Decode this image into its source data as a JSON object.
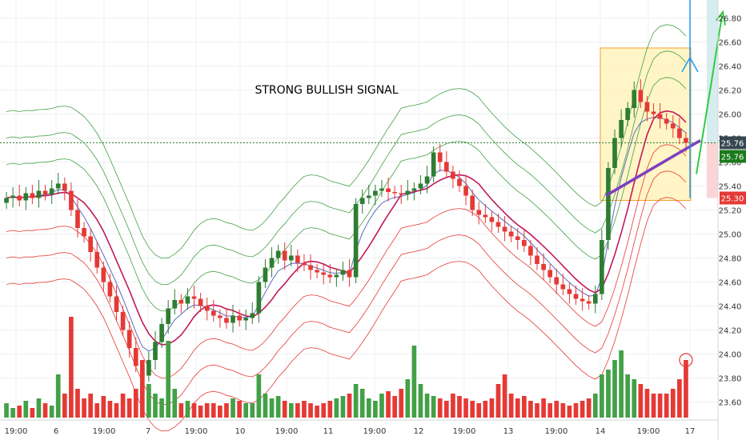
{
  "chart_data": {
    "type": "candlestick",
    "title": "",
    "annotation": "STRONG BULLISH SIGNAL",
    "grid": true,
    "colors": {
      "up": "#26a69a",
      "up_body": "#2e7d32",
      "down": "#e53935",
      "basis": "#c2185b",
      "ema": "#5c6bc0",
      "upper_band": "#43a047",
      "lower_band": "#e53935",
      "trendline": "#7e3fbf",
      "arrow_blue": "#2196f3",
      "arrow_green": "#2ecc40",
      "box_fill": "#fff2b3",
      "box_stroke": "#f0a030",
      "projection_up": "#d6ecef",
      "projection_down": "#fbd5d5"
    },
    "y_axis": {
      "range": [
        23.45,
        26.95
      ],
      "ticks": [
        "23.60",
        "23.80",
        "24.00",
        "24.20",
        "24.40",
        "24.60",
        "24.80",
        "25.00",
        "25.20",
        "25.40",
        "25.60",
        "25.80",
        "26.00",
        "26.20",
        "26.40",
        "26.60",
        "26.80"
      ]
    },
    "x_axis": {
      "labels": [
        "19:00",
        "6",
        "19:00",
        "7",
        "19:00",
        "10",
        "19:00",
        "11",
        "19:00",
        "12",
        "19:00",
        "13",
        "19:00",
        "14",
        "19:00",
        "17"
      ]
    },
    "price_labels": [
      {
        "value": 25.76,
        "text": "25.76",
        "color": "#37474f"
      },
      {
        "value": 25.76,
        "text": "25.76",
        "color": "#1b7a1b"
      },
      {
        "value": 25.3,
        "text": "25.30",
        "color": "#e53935"
      }
    ],
    "horizontal_line": 25.76,
    "close_series": [
      25.3,
      25.32,
      25.28,
      25.34,
      25.3,
      25.36,
      25.33,
      25.38,
      25.42,
      25.36,
      25.2,
      25.05,
      24.98,
      24.85,
      24.72,
      24.6,
      24.48,
      24.35,
      24.2,
      24.05,
      23.9,
      23.82,
      23.95,
      24.1,
      24.25,
      24.38,
      24.45,
      24.42,
      24.48,
      24.46,
      24.4,
      24.36,
      24.32,
      24.3,
      24.26,
      24.32,
      24.28,
      24.3,
      24.34,
      24.6,
      24.72,
      24.8,
      24.86,
      24.78,
      24.82,
      24.76,
      24.74,
      24.7,
      24.68,
      24.66,
      24.64,
      24.66,
      24.7,
      24.64,
      25.25,
      25.3,
      25.32,
      25.36,
      25.38,
      25.35,
      25.34,
      25.33,
      25.36,
      25.38,
      25.42,
      25.48,
      25.68,
      25.6,
      25.52,
      25.46,
      25.4,
      25.32,
      25.2,
      25.16,
      25.14,
      25.1,
      25.06,
      25.02,
      24.98,
      24.95,
      24.9,
      24.82,
      24.75,
      24.7,
      24.64,
      24.58,
      24.54,
      24.5,
      24.46,
      24.44,
      24.42,
      24.5,
      24.95,
      25.55,
      25.8,
      25.95,
      26.05,
      26.2,
      26.1,
      26.02,
      26.0,
      25.96,
      25.92,
      25.88,
      25.8,
      25.76
    ],
    "volume_series": [
      0.3,
      0.2,
      0.25,
      0.35,
      0.2,
      0.4,
      0.3,
      0.25,
      0.9,
      0.5,
      2.1,
      0.6,
      0.4,
      0.5,
      0.3,
      0.45,
      0.35,
      0.3,
      0.5,
      0.4,
      0.6,
      1.2,
      0.7,
      0.5,
      0.4,
      1.6,
      0.6,
      0.3,
      0.35,
      0.3,
      0.25,
      0.3,
      0.3,
      0.25,
      0.3,
      0.4,
      0.35,
      0.3,
      0.3,
      0.9,
      0.5,
      0.4,
      0.45,
      0.35,
      0.3,
      0.3,
      0.35,
      0.3,
      0.25,
      0.3,
      0.35,
      0.4,
      0.45,
      0.5,
      0.7,
      0.6,
      0.4,
      0.35,
      0.5,
      0.55,
      0.45,
      0.6,
      0.8,
      1.5,
      0.7,
      0.5,
      0.45,
      0.4,
      0.35,
      0.5,
      0.45,
      0.4,
      0.35,
      0.3,
      0.35,
      0.4,
      0.7,
      0.9,
      0.5,
      0.4,
      0.45,
      0.35,
      0.3,
      0.4,
      0.3,
      0.35,
      0.3,
      0.25,
      0.3,
      0.35,
      0.4,
      0.5,
      0.9,
      1.0,
      1.2,
      1.4,
      0.9,
      0.8,
      0.7,
      0.6,
      0.5,
      0.5,
      0.5,
      0.6,
      0.8,
      1.2
    ]
  }
}
